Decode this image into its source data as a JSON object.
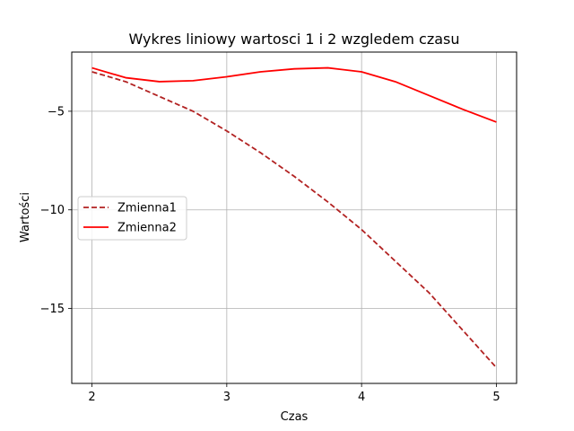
{
  "chart_data": {
    "type": "line",
    "title": "Wykres liniowy wartosci 1 i 2 wzgledem czasu",
    "xlabel": "Czas",
    "ylabel": "Wartości",
    "xlim": [
      1.85,
      5.15
    ],
    "ylim": [
      -18.8,
      -2.0
    ],
    "xticks": [
      2,
      3,
      4,
      5
    ],
    "xtick_labels": [
      "2",
      "3",
      "4",
      "5"
    ],
    "yticks": [
      -15,
      -10,
      -5
    ],
    "ytick_labels": [
      "−15",
      "−10",
      "−5"
    ],
    "grid": true,
    "legend_position": "center-left",
    "series": [
      {
        "name": "Zmienna1",
        "color": "#b22222",
        "style": "dashed",
        "x": [
          2.0,
          2.25,
          2.5,
          2.75,
          3.0,
          3.25,
          3.5,
          3.75,
          4.0,
          4.25,
          4.5,
          4.75,
          5.0
        ],
        "y": [
          -3.0,
          -3.5,
          -4.25,
          -5.0,
          -6.0,
          -7.1,
          -8.3,
          -9.6,
          -11.0,
          -12.6,
          -14.2,
          -16.1,
          -18.0
        ]
      },
      {
        "name": "Zmienna2",
        "color": "#ff0000",
        "style": "solid",
        "x": [
          2.0,
          2.25,
          2.5,
          2.75,
          3.0,
          3.25,
          3.5,
          3.75,
          4.0,
          4.25,
          4.5,
          4.75,
          5.0
        ],
        "y": [
          -2.8,
          -3.3,
          -3.5,
          -3.45,
          -3.25,
          -3.0,
          -2.85,
          -2.8,
          -3.0,
          -3.5,
          -4.2,
          -4.9,
          -5.55
        ]
      }
    ]
  }
}
